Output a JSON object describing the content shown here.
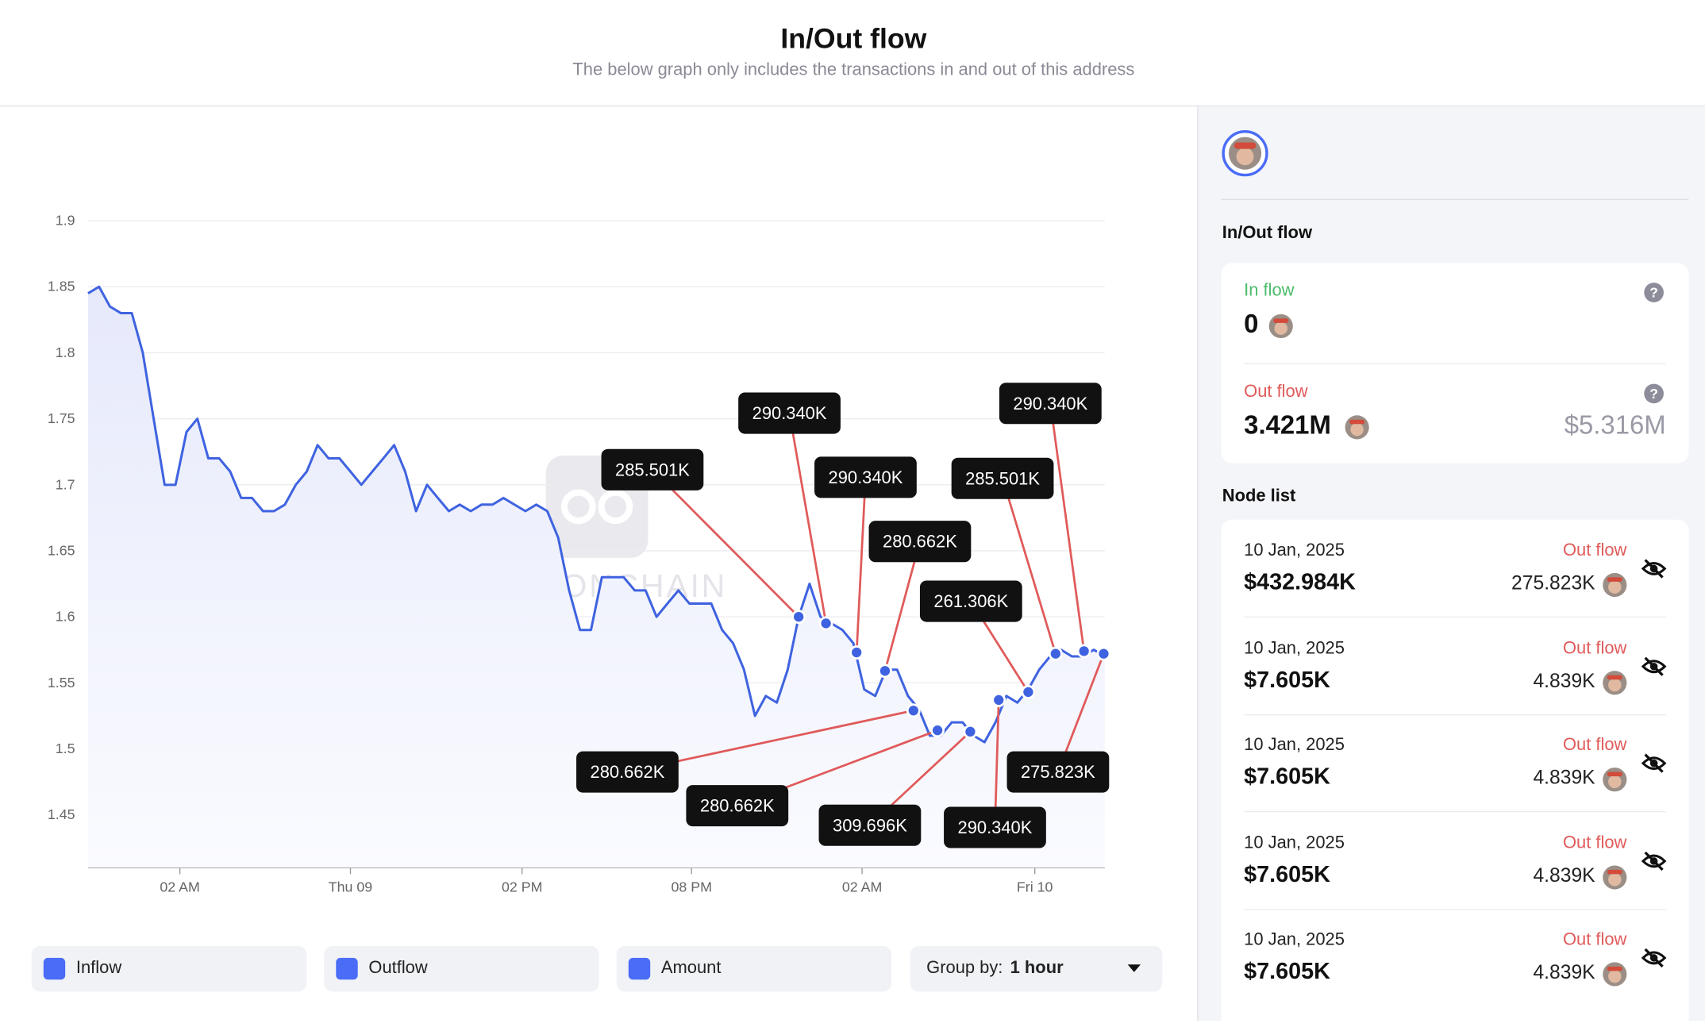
{
  "header": {
    "title": "In/Out flow",
    "subtitle": "The below graph only includes the transactions in and out of this address"
  },
  "chart_data": {
    "type": "line",
    "watermark": "SPOTONCHAIN",
    "x": [
      0,
      1,
      2,
      3,
      4,
      5,
      6,
      7,
      8,
      9,
      10,
      11,
      12,
      13,
      14,
      15,
      16,
      17,
      18,
      19,
      20,
      21,
      22,
      23,
      24,
      25,
      26,
      27,
      28,
      29,
      30,
      31,
      32,
      33,
      34,
      35,
      36,
      37,
      38,
      39,
      40,
      41,
      42,
      43,
      44,
      45,
      46,
      47,
      48,
      49,
      50,
      51,
      52,
      53,
      54,
      55,
      56,
      57,
      58,
      59,
      60,
      61,
      62,
      63,
      64,
      65,
      66,
      67,
      68,
      69,
      70,
      71,
      72,
      73,
      74,
      75,
      76,
      77,
      78,
      79,
      80,
      81,
      82,
      83,
      84,
      85,
      86,
      87,
      88,
      89,
      90,
      91,
      92,
      93
    ],
    "values": [
      1.845,
      1.85,
      1.835,
      1.83,
      1.83,
      1.8,
      1.75,
      1.7,
      1.7,
      1.74,
      1.75,
      1.72,
      1.72,
      1.71,
      1.69,
      1.69,
      1.68,
      1.68,
      1.685,
      1.7,
      1.71,
      1.73,
      1.72,
      1.72,
      1.71,
      1.7,
      1.71,
      1.72,
      1.73,
      1.71,
      1.68,
      1.7,
      1.69,
      1.68,
      1.685,
      1.68,
      1.685,
      1.685,
      1.69,
      1.685,
      1.68,
      1.685,
      1.68,
      1.66,
      1.62,
      1.59,
      1.59,
      1.63,
      1.63,
      1.63,
      1.62,
      1.62,
      1.6,
      1.61,
      1.62,
      1.61,
      1.61,
      1.61,
      1.59,
      1.58,
      1.56,
      1.525,
      1.54,
      1.535,
      1.56,
      1.6,
      1.625,
      1.6,
      1.595,
      1.59,
      1.58,
      1.545,
      1.54,
      1.56,
      1.56,
      1.54,
      1.53,
      1.51,
      1.51,
      1.52,
      1.52,
      1.51,
      1.505,
      1.52,
      1.54,
      1.535,
      1.545,
      1.56,
      1.57,
      1.575,
      1.57,
      1.57,
      1.575,
      1.57
    ],
    "color": "#3f63e0",
    "xlim": [
      0,
      93
    ],
    "ylim": [
      1.41,
      1.9
    ],
    "yticks": [
      1.45,
      1.5,
      1.55,
      1.6,
      1.65,
      1.7,
      1.75,
      1.8,
      1.85,
      1.9
    ],
    "xticks": [
      {
        "value": 8.4,
        "label": "02 AM"
      },
      {
        "value": 24,
        "label": "Thu 09"
      },
      {
        "value": 39.7,
        "label": "02 PM"
      },
      {
        "value": 55.2,
        "label": "08 PM"
      },
      {
        "value": 70.8,
        "label": "02 AM"
      },
      {
        "value": 86.6,
        "label": "Fri 10"
      }
    ],
    "grid": true,
    "annotations": [
      {
        "x": 65,
        "y": 1.6,
        "label": "285.501K"
      },
      {
        "x": 67.5,
        "y": 1.595,
        "label": "290.340K"
      },
      {
        "x": 70.3,
        "y": 1.573,
        "label": "290.340K"
      },
      {
        "x": 72.9,
        "y": 1.559,
        "label": "280.662K"
      },
      {
        "x": 75.5,
        "y": 1.529,
        "label": "280.662K"
      },
      {
        "x": 77.7,
        "y": 1.514,
        "label": "280.662K"
      },
      {
        "x": 80.7,
        "y": 1.513,
        "label": "309.696K"
      },
      {
        "x": 83.3,
        "y": 1.537,
        "label": "290.340K"
      },
      {
        "x": 86,
        "y": 1.543,
        "label": "261.306K"
      },
      {
        "x": 88.5,
        "y": 1.572,
        "label": "285.501K"
      },
      {
        "x": 91.1,
        "y": 1.574,
        "label": "290.340K"
      },
      {
        "x": 92.9,
        "y": 1.572,
        "label": "275.823K"
      }
    ]
  },
  "controls": {
    "checkboxes": [
      "Inflow",
      "Outflow",
      "Amount"
    ],
    "group_by_label": "Group by:",
    "group_by_value": "1 hour"
  },
  "panel": {
    "section_title": "In/Out flow",
    "in_label": "In flow",
    "in_value": "0",
    "out_label": "Out flow",
    "out_value": "3.421M",
    "out_usd": "$5.316M",
    "node_list_title": "Node list",
    "nodes": [
      {
        "date": "10 Jan, 2025",
        "usd": "$432.984K",
        "direction": "Out flow",
        "amount": "275.823K"
      },
      {
        "date": "10 Jan, 2025",
        "usd": "$7.605K",
        "direction": "Out flow",
        "amount": "4.839K"
      },
      {
        "date": "10 Jan, 2025",
        "usd": "$7.605K",
        "direction": "Out flow",
        "amount": "4.839K"
      },
      {
        "date": "10 Jan, 2025",
        "usd": "$7.605K",
        "direction": "Out flow",
        "amount": "4.839K"
      },
      {
        "date": "10 Jan, 2025",
        "usd": "$7.605K",
        "direction": "Out flow",
        "amount": "4.839K"
      }
    ]
  }
}
